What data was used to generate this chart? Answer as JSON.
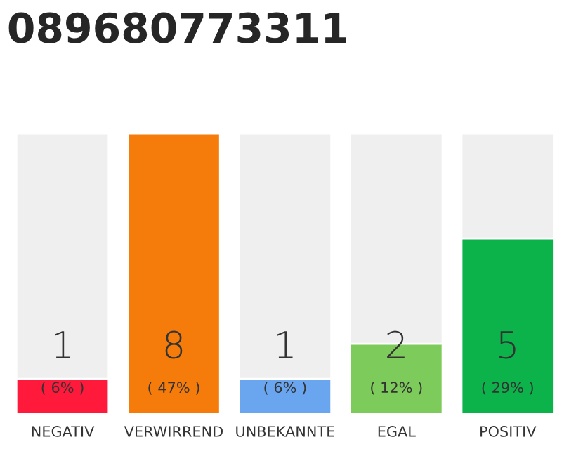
{
  "chart_data": {
    "type": "bar",
    "title": "089680773311",
    "categories": [
      "NEGATIV",
      "VERWIRREND",
      "UNBEKANNTE",
      "EGAL",
      "POSITIV"
    ],
    "values": [
      1,
      8,
      1,
      2,
      5
    ],
    "colors": [
      "#ff1a3c",
      "#f57c0a",
      "#6aa6ef",
      "#7dcb5b",
      "#0bb34a"
    ],
    "data_labels": true,
    "ylim": [
      0,
      8
    ],
    "tick_labels": "x",
    "annotations": [
      "( 6% )",
      "( 47% )",
      "( 6% )",
      "( 12% )",
      "( 29% )"
    ]
  }
}
